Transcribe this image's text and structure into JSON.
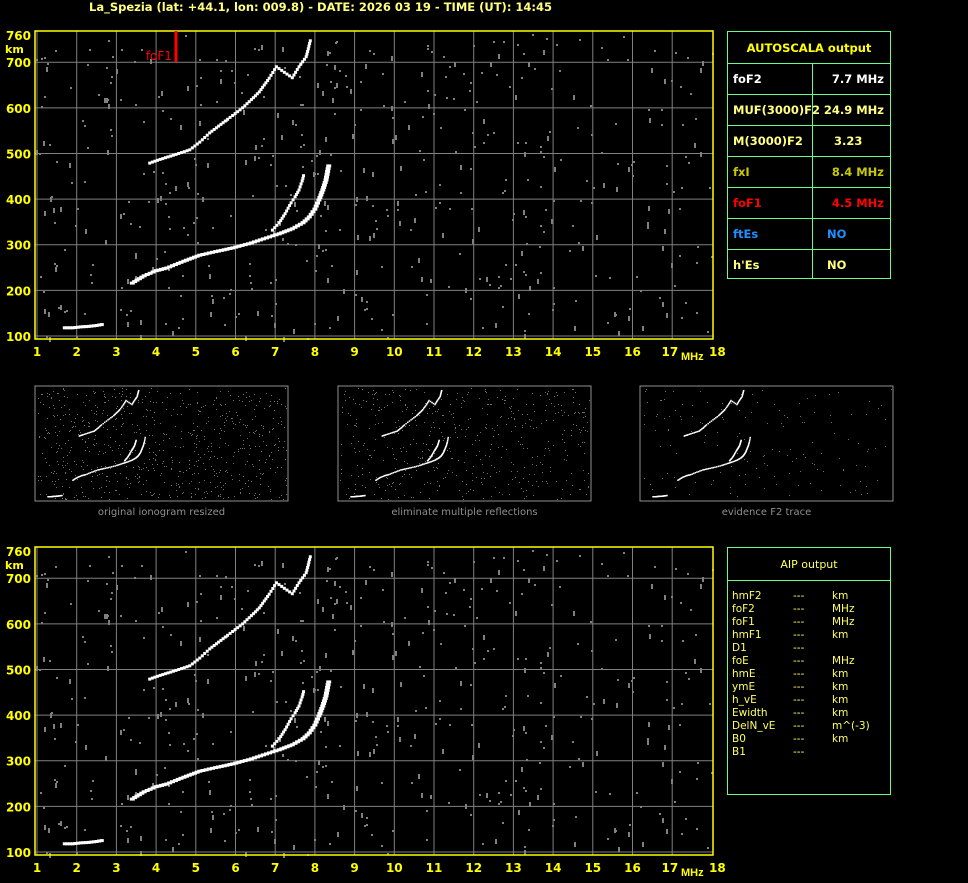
{
  "title": "La_Spezia (lat: +44.1, lon: 009.8) - DATE: 2026 03 19 - TIME (UT): 14:45",
  "colors": {
    "axis": "#ffff00",
    "grid": "#808080",
    "trace": "#ffffff",
    "noise": "#808080",
    "fof1_marker": "#ff0000",
    "table_border": "#66ff88"
  },
  "chart_data": [
    {
      "type": "scatter",
      "name_hint": "ionogram-main",
      "xlabel": "MHz",
      "ylabel": "km",
      "xlim": [
        1,
        18
      ],
      "ylim": [
        100,
        760
      ],
      "x_ticks": [
        "1",
        "2",
        "3",
        "4",
        "5",
        "6",
        "7",
        "8",
        "9",
        "10",
        "11",
        "12",
        "13",
        "14",
        "15",
        "16",
        "17",
        "18"
      ],
      "y_ticks": [
        "100",
        "200",
        "300",
        "400",
        "500",
        "600",
        "700",
        "760"
      ],
      "grid": true,
      "marker": {
        "label": "foF1",
        "x": 4.5,
        "color": "#ff0000"
      },
      "traces": {
        "low_trace": [
          [
            1.7,
            118
          ],
          [
            1.9,
            118
          ],
          [
            2.1,
            120
          ],
          [
            2.3,
            121
          ],
          [
            2.5,
            123
          ],
          [
            2.7,
            126
          ]
        ],
        "main_trace": [
          [
            3.4,
            216
          ],
          [
            3.7,
            232
          ],
          [
            4.0,
            243
          ],
          [
            4.27,
            249
          ],
          [
            4.7,
            264
          ],
          [
            5.1,
            277
          ],
          [
            5.5,
            285
          ],
          [
            5.93,
            293
          ],
          [
            6.4,
            304
          ],
          [
            6.78,
            315
          ],
          [
            7.1,
            324
          ],
          [
            7.43,
            335
          ],
          [
            7.7,
            348
          ],
          [
            7.86,
            361
          ],
          [
            8.0,
            378
          ],
          [
            8.1,
            398
          ],
          [
            8.2,
            420
          ],
          [
            8.28,
            442
          ],
          [
            8.36,
            479
          ]
        ],
        "inner_trace": [
          [
            6.93,
            332
          ],
          [
            7.1,
            348
          ],
          [
            7.25,
            368
          ],
          [
            7.4,
            392
          ],
          [
            7.5,
            405
          ],
          [
            7.6,
            420
          ],
          [
            7.68,
            440
          ],
          [
            7.73,
            457
          ]
        ],
        "second_hop": [
          [
            3.84,
            479
          ],
          [
            4.1,
            487
          ],
          [
            4.5,
            498
          ],
          [
            4.85,
            508
          ],
          [
            5.1,
            525
          ],
          [
            5.35,
            545
          ],
          [
            5.8,
            575
          ],
          [
            6.18,
            600
          ],
          [
            6.4,
            618
          ],
          [
            6.6,
            635
          ],
          [
            6.85,
            665
          ],
          [
            7.03,
            690
          ],
          [
            7.43,
            666
          ],
          [
            7.6,
            690
          ],
          [
            7.78,
            712
          ],
          [
            7.85,
            735
          ],
          [
            7.9,
            753
          ]
        ]
      }
    },
    {
      "type": "scatter",
      "name_hint": "ionogram-aip",
      "xlabel": "MHz",
      "ylabel": "km",
      "xlim": [
        1,
        18
      ],
      "ylim": [
        100,
        760
      ],
      "x_ticks": [
        "1",
        "2",
        "3",
        "4",
        "5",
        "6",
        "7",
        "8",
        "9",
        "10",
        "11",
        "12",
        "13",
        "14",
        "15",
        "16",
        "17",
        "18"
      ],
      "y_ticks": [
        "100",
        "200",
        "300",
        "400",
        "500",
        "600",
        "700",
        "760"
      ],
      "grid": true
    }
  ],
  "thumbnails": [
    {
      "caption": "original ionogram resized"
    },
    {
      "caption": "eliminate multiple reflections"
    },
    {
      "caption": "evidence F2 trace"
    }
  ],
  "autoscala": {
    "header": "AUTOSCALA output",
    "rows": [
      {
        "label": "foF2",
        "value": "7.7 MHz",
        "color": "#ffffff"
      },
      {
        "label": "MUF(3000)F2",
        "value": "24.9 MHz",
        "color": "#ffff80"
      },
      {
        "label": "M(3000)F2",
        "value": "3.23",
        "color": "#ffff80"
      },
      {
        "label": "fxI",
        "value": "8.4 MHz",
        "color": "#c8c800"
      },
      {
        "label": "foF1",
        "value": "4.5 MHz",
        "color": "#ff0000"
      },
      {
        "label": "ftEs",
        "value": "NO",
        "color": "#1e90ff"
      },
      {
        "label": "h'Es",
        "value": "NO",
        "color": "#ffff80"
      }
    ]
  },
  "aip": {
    "header": "AIP output",
    "rows": [
      {
        "label": "hmF2",
        "value": "---",
        "unit": "km"
      },
      {
        "label": "foF2",
        "value": "---",
        "unit": "MHz"
      },
      {
        "label": "foF1",
        "value": "---",
        "unit": "MHz"
      },
      {
        "label": "hmF1",
        "value": "---",
        "unit": "km"
      },
      {
        "label": "D1",
        "value": "---",
        "unit": ""
      },
      {
        "label": "foE",
        "value": "---",
        "unit": "MHz"
      },
      {
        "label": "hmE",
        "value": "---",
        "unit": "km"
      },
      {
        "label": "ymE",
        "value": "---",
        "unit": "km"
      },
      {
        "label": "h_vE",
        "value": "---",
        "unit": "km"
      },
      {
        "label": "Ewidth",
        "value": "---",
        "unit": "km"
      },
      {
        "label": "DelN_vE",
        "value": "---",
        "unit": "m^(-3)"
      },
      {
        "label": "B0",
        "value": "---",
        "unit": "km"
      },
      {
        "label": "B1",
        "value": "---",
        "unit": ""
      }
    ]
  }
}
